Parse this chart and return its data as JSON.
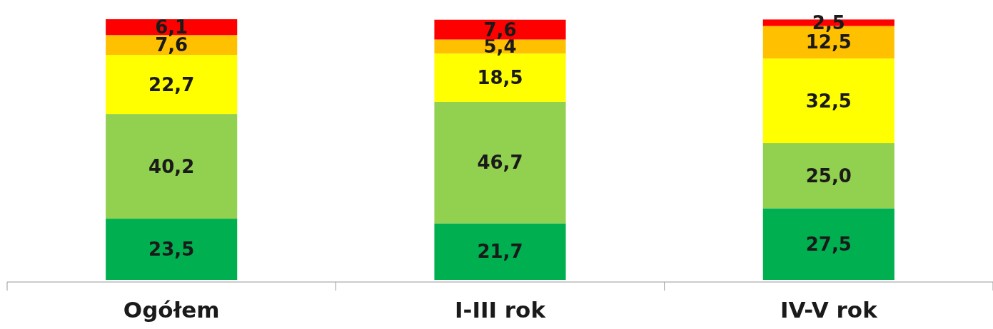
{
  "chart_data": {
    "type": "bar",
    "stacked": true,
    "categories": [
      "Ogółem",
      "I-III rok",
      "IV-V rok"
    ],
    "series": [
      {
        "color": "#00b050",
        "values": [
          23.5,
          21.7,
          27.5
        ],
        "value_labels": [
          "23,5",
          "21,7",
          "27,5"
        ]
      },
      {
        "color": "#92d050",
        "values": [
          40.2,
          46.7,
          25.0
        ],
        "value_labels": [
          "40,2",
          "46,7",
          "25,0"
        ]
      },
      {
        "color": "#ffff00",
        "values": [
          22.7,
          18.5,
          32.5
        ],
        "value_labels": [
          "22,7",
          "18,5",
          "32,5"
        ]
      },
      {
        "color": "#ffc000",
        "values": [
          7.6,
          5.4,
          12.5
        ],
        "value_labels": [
          "7,6",
          "5,4",
          "12,5"
        ]
      },
      {
        "color": "#ff0000",
        "values": [
          6.1,
          7.6,
          2.5
        ],
        "value_labels": [
          "6,1",
          "7,6",
          "2,5"
        ]
      }
    ]
  }
}
